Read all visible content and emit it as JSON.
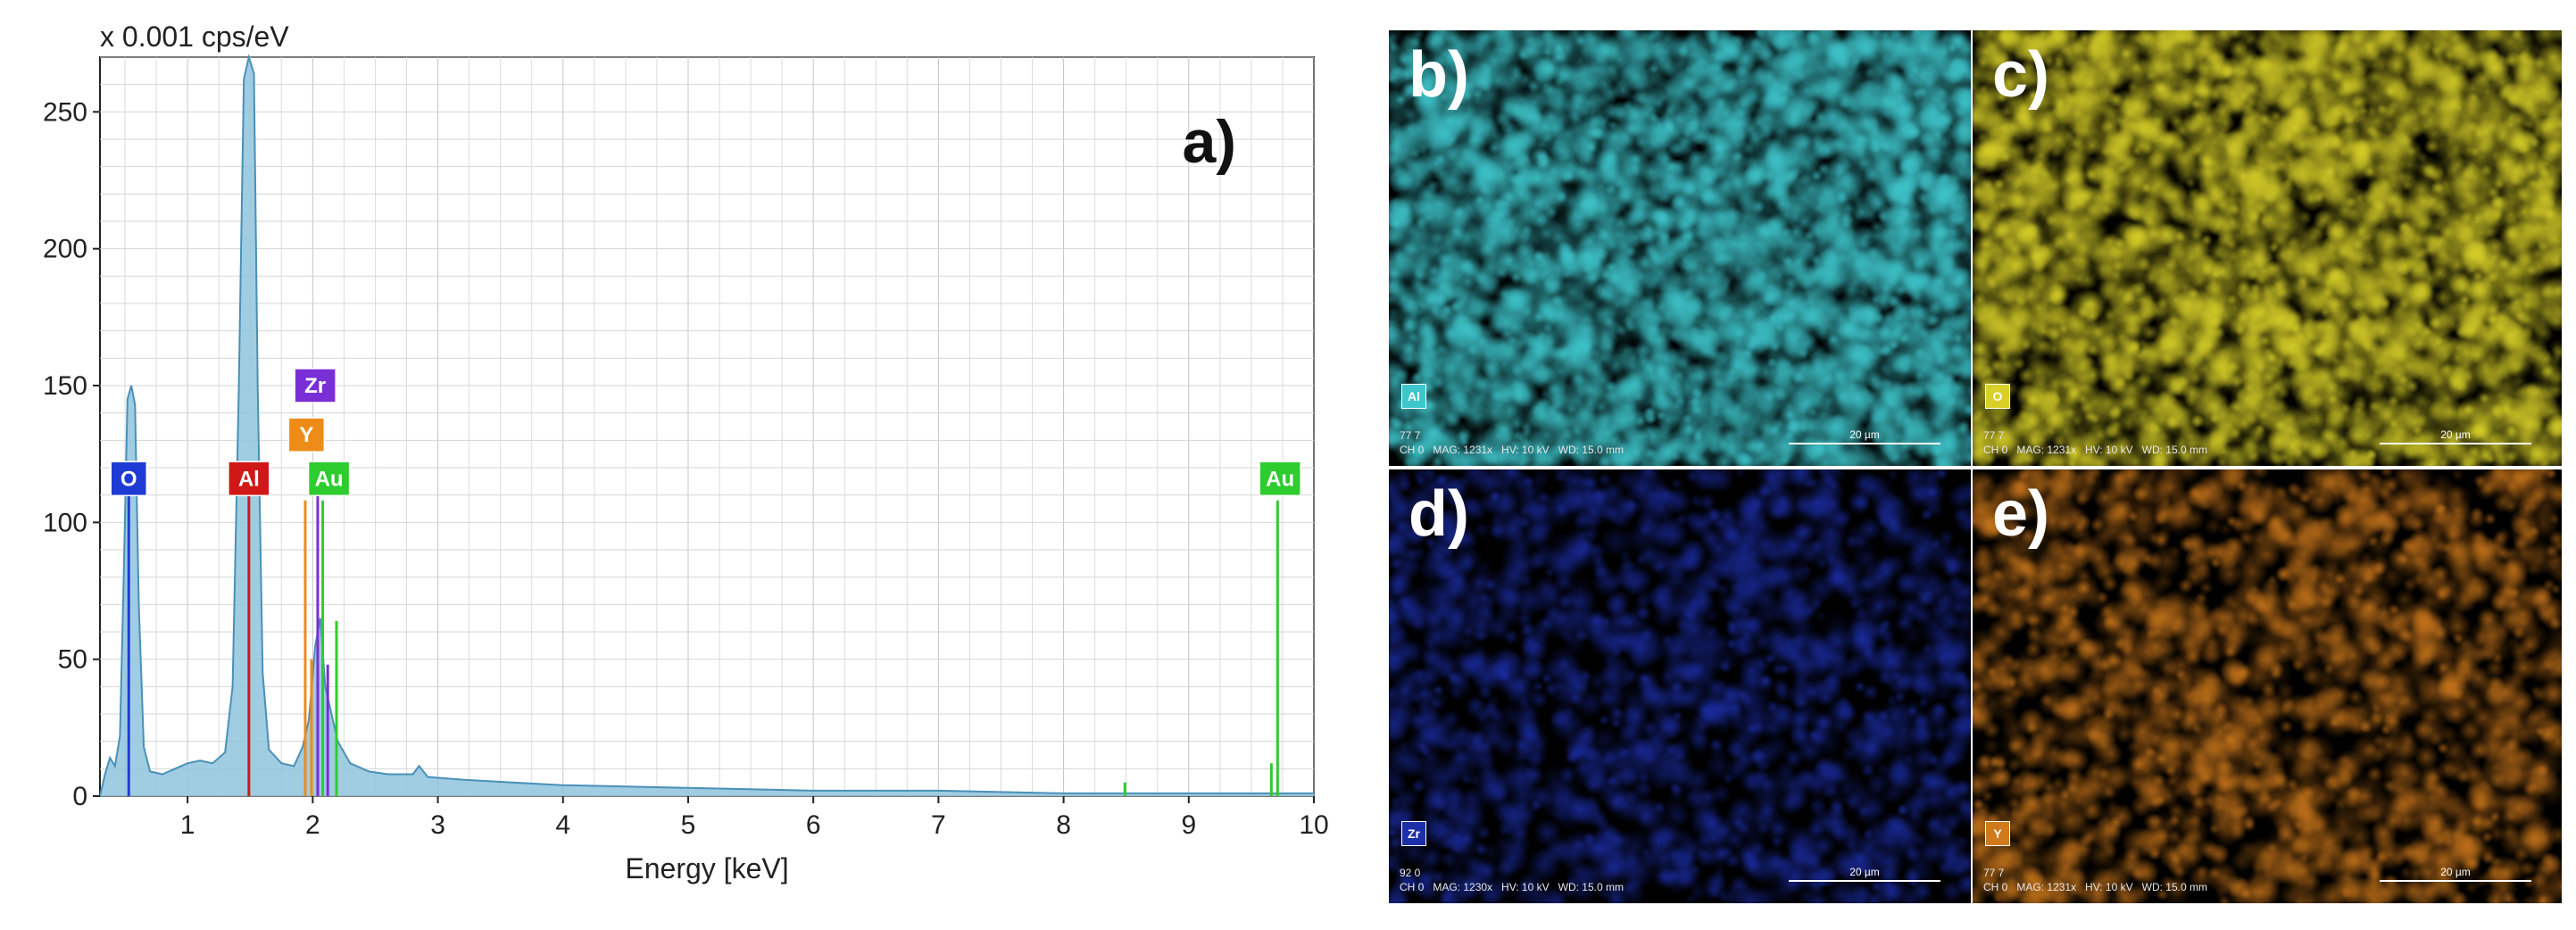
{
  "chart_data": [
    {
      "type": "line",
      "panel_label": "a)",
      "unit_label": "x 0.001 cps/eV",
      "title": "",
      "xlabel": "Energy [keV]",
      "ylabel": "",
      "xlim": [
        0.3,
        10.0
      ],
      "ylim": [
        0,
        270
      ],
      "grid": true,
      "x_ticks": [
        1,
        2,
        3,
        4,
        5,
        6,
        7,
        8,
        9,
        10
      ],
      "y_ticks": [
        0,
        50,
        100,
        150,
        200,
        250
      ],
      "series": [
        {
          "color": "#4a90b8",
          "fill": "#8fc4dc",
          "points": [
            [
              0.3,
              0.0
            ],
            [
              0.34,
              8.0
            ],
            [
              0.38,
              14.0
            ],
            [
              0.42,
              11.0
            ],
            [
              0.46,
              22.0
            ],
            [
              0.49,
              80.0
            ],
            [
              0.52,
              145.0
            ],
            [
              0.55,
              150.0
            ],
            [
              0.58,
              143.0
            ],
            [
              0.61,
              70.0
            ],
            [
              0.65,
              18.0
            ],
            [
              0.7,
              9.0
            ],
            [
              0.8,
              8.0
            ],
            [
              0.9,
              10.0
            ],
            [
              1.0,
              12.0
            ],
            [
              1.1,
              13.0
            ],
            [
              1.2,
              12.0
            ],
            [
              1.3,
              16.0
            ],
            [
              1.36,
              40.0
            ],
            [
              1.41,
              150.0
            ],
            [
              1.45,
              262.0
            ],
            [
              1.49,
              270.0
            ],
            [
              1.53,
              264.0
            ],
            [
              1.56,
              150.0
            ],
            [
              1.6,
              45.0
            ],
            [
              1.65,
              17.0
            ],
            [
              1.75,
              12.0
            ],
            [
              1.85,
              11.0
            ],
            [
              1.92,
              18.0
            ],
            [
              1.97,
              28.0
            ],
            [
              2.02,
              55.0
            ],
            [
              2.06,
              65.0
            ],
            [
              2.1,
              40.0
            ],
            [
              2.15,
              30.0
            ],
            [
              2.2,
              20.0
            ],
            [
              2.3,
              12.0
            ],
            [
              2.45,
              9.0
            ],
            [
              2.6,
              8.0
            ],
            [
              2.8,
              8.0
            ],
            [
              2.85,
              11.0
            ],
            [
              2.92,
              7.0
            ],
            [
              3.2,
              6.0
            ],
            [
              3.6,
              5.0
            ],
            [
              4.0,
              4.0
            ],
            [
              5.0,
              3.0
            ],
            [
              6.0,
              2.0
            ],
            [
              7.0,
              2.0
            ],
            [
              8.0,
              1.0
            ],
            [
              9.0,
              1.0
            ],
            [
              10.0,
              1.0
            ]
          ]
        }
      ],
      "element_lines": [
        {
          "color": "#1f3bd6",
          "x": 0.53,
          "height": 112
        },
        {
          "color": "#d01818",
          "x": 1.49,
          "height": 112
        },
        {
          "color": "#ee8c1a",
          "x": 1.94,
          "height": 108
        },
        {
          "color": "#ee8c1a",
          "x": 1.99,
          "height": 50
        },
        {
          "color": "#7a2ed6",
          "x": 2.04,
          "height": 110
        },
        {
          "color": "#7a2ed6",
          "x": 2.12,
          "height": 48
        },
        {
          "color": "#2fcc2f",
          "x": 2.08,
          "height": 108
        },
        {
          "color": "#2fcc2f",
          "x": 2.19,
          "height": 64
        },
        {
          "color": "#2fcc2f",
          "x": 8.49,
          "height": 5
        },
        {
          "color": "#2fcc2f",
          "x": 9.66,
          "height": 12
        },
        {
          "color": "#2fcc2f",
          "x": 9.71,
          "height": 108
        }
      ],
      "peak_labels": [
        {
          "text": "O",
          "x": 0.53,
          "y": 116,
          "bg": "#1f3bd6",
          "fg": "#ffffff"
        },
        {
          "text": "Al",
          "x": 1.49,
          "y": 116,
          "bg": "#d01818",
          "fg": "#ffffff"
        },
        {
          "text": "Y",
          "x": 1.95,
          "y": 132,
          "bg": "#ee8c1a",
          "fg": "#ffffff"
        },
        {
          "text": "Zr",
          "x": 2.02,
          "y": 150,
          "bg": "#7a2ed6",
          "fg": "#ffffff"
        },
        {
          "text": "Au",
          "x": 2.13,
          "y": 116,
          "bg": "#2fcc2f",
          "fg": "#ffffff"
        },
        {
          "text": "Au",
          "x": 9.73,
          "y": 116,
          "bg": "#2fcc2f",
          "fg": "#ffffff"
        }
      ]
    }
  ],
  "element_maps": [
    {
      "letter": "b)",
      "element": "Al",
      "color": "#3ec6cc",
      "info": "77 7\nCH 0   MAG: 1231x   HV: 10 kV   WD: 15.0 mm",
      "scale": "20 µm",
      "density": 0.85
    },
    {
      "letter": "c)",
      "element": "O",
      "color": "#d8d028",
      "info": "77 7\nCH 0   MAG: 1231x   HV: 10 kV   WD: 15.0 mm",
      "scale": "20 µm",
      "density": 0.75
    },
    {
      "letter": "d)",
      "element": "Zr",
      "color": "#1c2ea8",
      "info": "92 0\nCH 0   MAG: 1230x   HV: 10 kV   WD: 15.0 mm",
      "scale": "20 µm",
      "density": 0.35
    },
    {
      "letter": "e)",
      "element": "Y",
      "color": "#d07a1c",
      "info": "77 7\nCH 0   MAG: 1231x   HV: 10 kV   WD: 15.0 mm",
      "scale": "20 µm",
      "density": 0.4
    }
  ]
}
